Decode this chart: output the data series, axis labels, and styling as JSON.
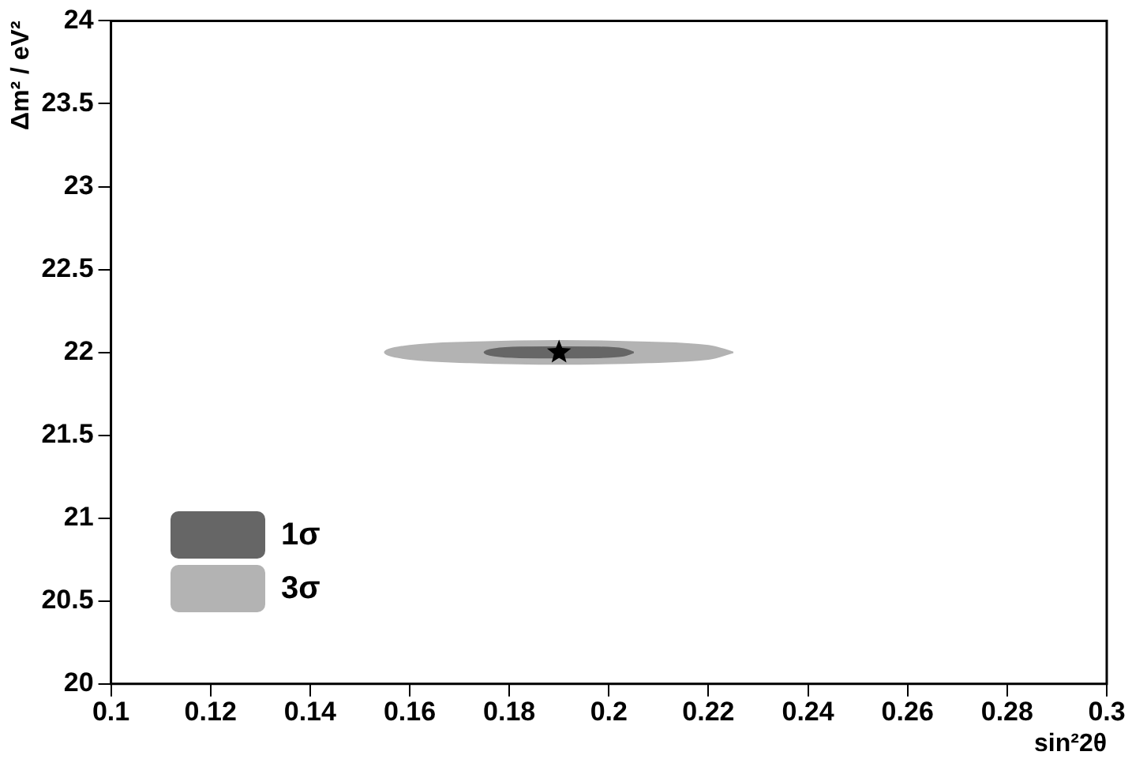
{
  "chart_data": {
    "type": "area",
    "xlabel": "sin²2θ",
    "ylabel": "Δm² / eV²",
    "xlim": [
      0.1,
      0.3
    ],
    "ylim": [
      20,
      24
    ],
    "xticks": [
      0.1,
      0.12,
      0.14,
      0.16,
      0.18,
      0.2,
      0.22,
      0.24,
      0.26,
      0.28,
      0.3
    ],
    "yticks": [
      20,
      20.5,
      21,
      21.5,
      22,
      22.5,
      23,
      23.5,
      24
    ],
    "grid": false,
    "legend": "bottom left",
    "series": [
      {
        "name": "3σ",
        "color": "#b3b3b3",
        "x": [
          0.225,
          0.22,
          0.208,
          0.19,
          0.172,
          0.16,
          0.155,
          0.16,
          0.172,
          0.19,
          0.208,
          0.22,
          0.225
        ],
        "values": [
          22,
          22.04,
          22.06,
          22.07,
          22.06,
          22.04,
          22,
          21.96,
          21.94,
          21.93,
          21.94,
          21.96,
          22
        ]
      },
      {
        "name": "1σ",
        "color": "#666666",
        "x": [
          0.205,
          0.203,
          0.198,
          0.182,
          0.177,
          0.175,
          0.177,
          0.182,
          0.198,
          0.203,
          0.205
        ],
        "values": [
          22,
          22.02,
          22.03,
          22.03,
          22.02,
          22,
          21.98,
          21.97,
          21.97,
          21.98,
          22
        ]
      },
      {
        "type": "scatter",
        "color": "#000000",
        "marker": "star",
        "x": [
          0.19
        ],
        "values": [
          22
        ]
      }
    ]
  }
}
